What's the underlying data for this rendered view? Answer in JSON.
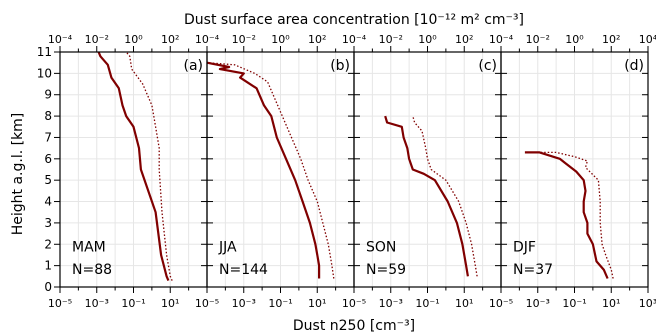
{
  "chart_data": {
    "type": "line",
    "top_axis_label": "Dust surface area concentration [10⁻¹² m² cm⁻³]",
    "xlabel": "Dust n250 [cm⁻³]",
    "ylabel": "Height a.g.l. [km]",
    "ylim": [
      0,
      11
    ],
    "yticks": [
      0,
      1,
      2,
      3,
      4,
      5,
      6,
      7,
      8,
      9,
      10,
      11
    ],
    "x_log": true,
    "xlim_exp": [
      -5,
      3
    ],
    "bottom_tick_labels": [
      "10⁻⁵",
      "10⁻³",
      "10⁻¹",
      "10¹",
      "10⁻⁵",
      "10⁻³",
      "10⁻¹",
      "10¹",
      "10⁻⁵",
      "10⁻³",
      "10⁻¹",
      "10¹",
      "10⁻⁵",
      "10⁻³",
      "10⁻¹",
      "10¹",
      "10³"
    ],
    "top_tick_labels": [
      "10⁻⁴",
      "10⁻²",
      "10⁰",
      "10²",
      "10⁻⁴",
      "10⁻²",
      "10⁰",
      "10²",
      "10⁻⁴",
      "10⁻²",
      "10⁰",
      "10²",
      "10⁻⁴",
      "10⁻²",
      "10⁰",
      "10²",
      "10⁴"
    ],
    "grid": true,
    "line_color": "#800000",
    "panels": [
      {
        "tag": "(a)",
        "season": "MAM",
        "count": "N=88",
        "solid": [
          [
            0.3,
            0.9
          ],
          [
            0.5,
            0.8
          ],
          [
            1.5,
            0.5
          ],
          [
            3.5,
            0.2
          ],
          [
            5.5,
            -0.6
          ],
          [
            6.5,
            -0.7
          ],
          [
            7.5,
            -1.0
          ],
          [
            8,
            -1.4
          ],
          [
            8.5,
            -1.6
          ],
          [
            9.3,
            -1.8
          ],
          [
            9.8,
            -2.2
          ],
          [
            10.4,
            -2.4
          ],
          [
            10.8,
            -2.8
          ],
          [
            11,
            -2.9
          ]
        ],
        "dotted": [
          [
            0.3,
            1.1
          ],
          [
            0.5,
            1.0
          ],
          [
            1.5,
            0.8
          ],
          [
            3.5,
            0.55
          ],
          [
            5.5,
            0.4
          ],
          [
            6.5,
            0.4
          ],
          [
            7.5,
            0.2
          ],
          [
            8.5,
            0.0
          ],
          [
            9.5,
            -0.5
          ],
          [
            10.2,
            -1.1
          ],
          [
            10.8,
            -1.2
          ],
          [
            11,
            -1.4
          ]
        ]
      },
      {
        "tag": "(b)",
        "season": "JJA",
        "count": "N=144",
        "solid": [
          [
            0.4,
            1.1
          ],
          [
            1,
            1.1
          ],
          [
            1.5,
            1.0
          ],
          [
            2,
            0.9
          ],
          [
            3,
            0.6
          ],
          [
            4,
            0.2
          ],
          [
            5,
            -0.2
          ],
          [
            6,
            -0.7
          ],
          [
            7,
            -1.2
          ],
          [
            8,
            -1.5
          ],
          [
            8.5,
            -1.9
          ],
          [
            9.3,
            -2.3
          ],
          [
            9.8,
            -3.2
          ],
          [
            10.0,
            -3.0
          ],
          [
            10.2,
            -4.3
          ],
          [
            10.3,
            -3.8
          ],
          [
            10.5,
            -5.0
          ]
        ],
        "dotted": [
          [
            0.4,
            1.9
          ],
          [
            1,
            1.8
          ],
          [
            2,
            1.6
          ],
          [
            3,
            1.3
          ],
          [
            4,
            1.0
          ],
          [
            5,
            0.5
          ],
          [
            6,
            0.1
          ],
          [
            7,
            -0.4
          ],
          [
            8,
            -0.9
          ],
          [
            9,
            -1.4
          ],
          [
            9.6,
            -1.7
          ],
          [
            10.0,
            -2.4
          ],
          [
            10.4,
            -3.5
          ],
          [
            10.5,
            -5.0
          ]
        ]
      },
      {
        "tag": "(c)",
        "season": "SON",
        "count": "N=59",
        "solid": [
          [
            0.5,
            1.2
          ],
          [
            1,
            1.1
          ],
          [
            2,
            0.9
          ],
          [
            3,
            0.6
          ],
          [
            4,
            0.1
          ],
          [
            5,
            -0.6
          ],
          [
            5.3,
            -1.2
          ],
          [
            5.5,
            -1.8
          ],
          [
            6,
            -2.0
          ],
          [
            6.5,
            -2.1
          ],
          [
            7,
            -2.3
          ],
          [
            7.5,
            -2.4
          ],
          [
            7.7,
            -3.2
          ],
          [
            8,
            -3.3
          ]
        ],
        "dotted": [
          [
            0.5,
            1.7
          ],
          [
            1,
            1.6
          ],
          [
            2,
            1.4
          ],
          [
            3,
            1.1
          ],
          [
            4,
            0.7
          ],
          [
            5,
            0.0
          ],
          [
            5.5,
            -0.8
          ],
          [
            6,
            -1.0
          ],
          [
            6.5,
            -1.1
          ],
          [
            7.3,
            -1.3
          ],
          [
            7.7,
            -1.7
          ],
          [
            8,
            -1.8
          ]
        ]
      },
      {
        "tag": "(d)",
        "season": "DJF",
        "count": "N=37",
        "solid": [
          [
            0.4,
            0.8
          ],
          [
            0.8,
            0.6
          ],
          [
            1.2,
            0.2
          ],
          [
            2,
            0.0
          ],
          [
            2.5,
            -0.3
          ],
          [
            3,
            -0.3
          ],
          [
            3.5,
            -0.5
          ],
          [
            4,
            -0.5
          ],
          [
            4.5,
            -0.4
          ],
          [
            5,
            -0.5
          ],
          [
            5.4,
            -0.9
          ],
          [
            5.8,
            -1.5
          ],
          [
            6.0,
            -1.8
          ],
          [
            6.3,
            -2.9
          ],
          [
            6.3,
            -3.7
          ]
        ],
        "dotted": [
          [
            0.4,
            1.1
          ],
          [
            0.8,
            1.0
          ],
          [
            1.5,
            0.7
          ],
          [
            2,
            0.5
          ],
          [
            3,
            0.4
          ],
          [
            4,
            0.4
          ],
          [
            5,
            0.3
          ],
          [
            5.6,
            -0.4
          ],
          [
            5.9,
            -0.3
          ],
          [
            6.1,
            -1.0
          ],
          [
            6.3,
            -2.0
          ],
          [
            6.3,
            -3.7
          ]
        ]
      }
    ]
  }
}
